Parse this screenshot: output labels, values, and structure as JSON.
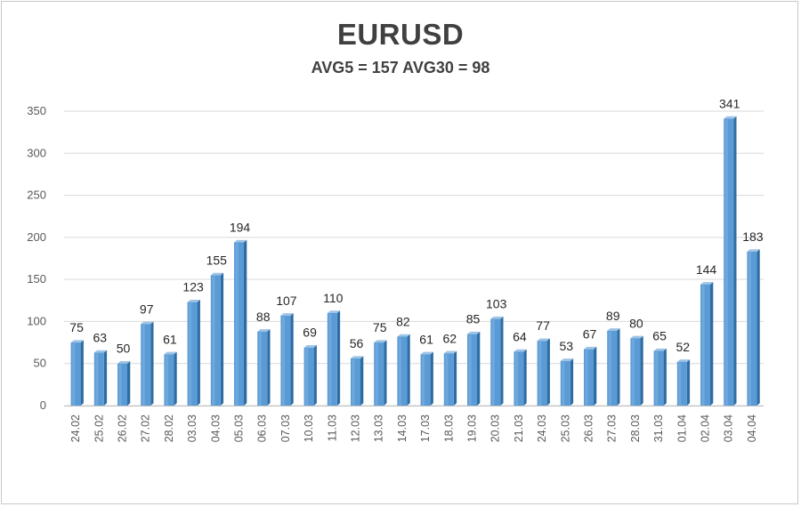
{
  "chart_data": {
    "type": "bar",
    "title": "EURUSD",
    "subtitle": "AVG5 = 157 AVG30 = 98",
    "xlabel": "",
    "ylabel": "",
    "categories": [
      "24.02",
      "25.02",
      "26.02",
      "27.02",
      "28.02",
      "03.03",
      "04.03",
      "05.03",
      "06.03",
      "07.03",
      "10.03",
      "11.03",
      "12.03",
      "13.03",
      "14.03",
      "17.03",
      "18.03",
      "19.03",
      "20.03",
      "21.03",
      "24.03",
      "25.03",
      "26.03",
      "27.03",
      "28.03",
      "31.03",
      "01.04",
      "02.04",
      "03.04",
      "04.04"
    ],
    "values": [
      75,
      63,
      50,
      97,
      61,
      123,
      155,
      194,
      88,
      107,
      69,
      110,
      56,
      75,
      82,
      61,
      62,
      85,
      103,
      64,
      77,
      53,
      67,
      89,
      80,
      65,
      52,
      144,
      341,
      183
    ],
    "ylim": [
      0,
      350
    ],
    "yticks": [
      0,
      50,
      100,
      150,
      200,
      250,
      300,
      350
    ],
    "grid": true,
    "legend": "none",
    "colors": {
      "bar_front": "#5b9bd5",
      "bar_light": "#9dc3e6",
      "bar_dark": "#2e6da4",
      "grid": "#d9d9d9"
    }
  }
}
